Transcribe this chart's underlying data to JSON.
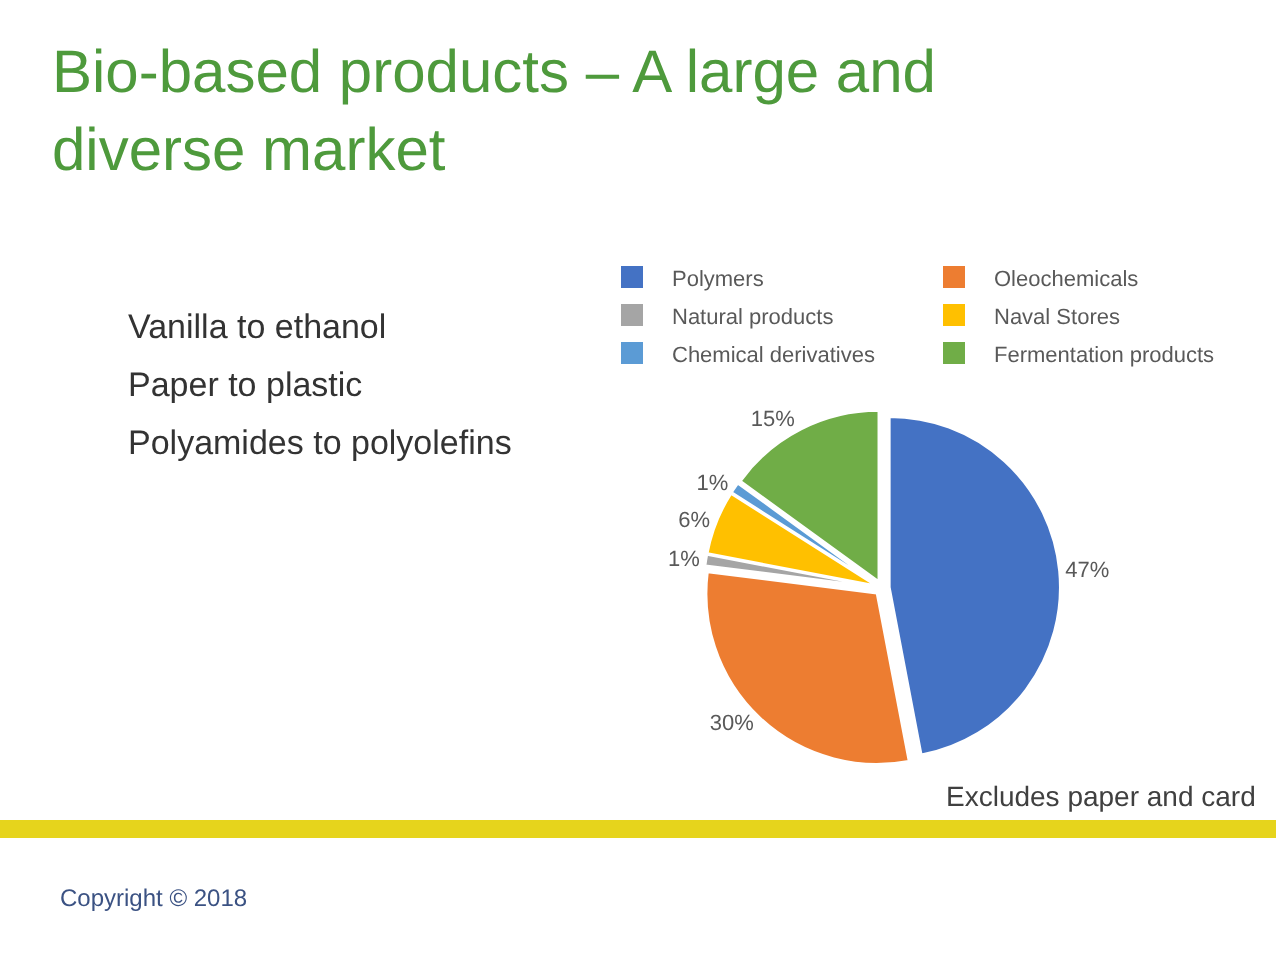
{
  "chart_data": {
    "type": "pie",
    "title": "Bio-based products – A large and diverse market",
    "categories": [
      "Polymers",
      "Oleochemicals",
      "Natural products",
      "Naval Stores",
      "Chemical derivatives",
      "Fermentation products"
    ],
    "values": [
      47,
      30,
      1,
      6,
      1,
      15
    ],
    "colors": [
      "#4472c4",
      "#ed7d31",
      "#a5a5a5",
      "#ffc000",
      "#5b9bd5",
      "#70ad47"
    ],
    "value_labels": [
      "47%",
      "30%",
      "1%",
      "6%",
      "1%",
      "15%"
    ],
    "legend": "top",
    "annotations": [
      "Vanilla to ethanol",
      "Paper to plastic",
      "Polyamides to polyolefins",
      "Excludes paper and card",
      "Copyright © 2018"
    ]
  }
}
